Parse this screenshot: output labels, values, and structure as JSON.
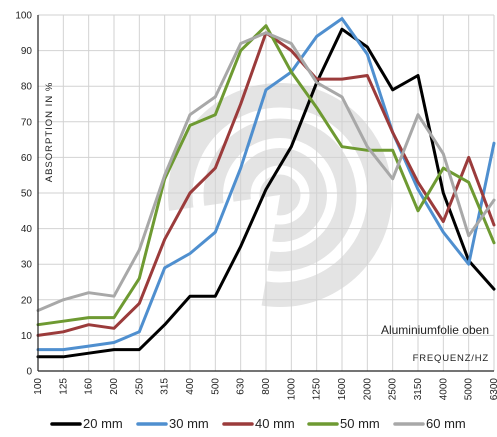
{
  "chart_data": {
    "type": "line",
    "title": "",
    "ylabel": "ABSORPTION IN %",
    "xlabel": "FREQUENZ/HZ",
    "annotation": "Aluminiumfolie oben",
    "ylim": [
      0,
      100
    ],
    "yticks": [
      "0",
      "10",
      "20",
      "30",
      "40",
      "50",
      "60",
      "70",
      "80",
      "90",
      "100"
    ],
    "categories": [
      "100",
      "125",
      "160",
      "200",
      "250",
      "315",
      "400",
      "500",
      "630",
      "800",
      "1000",
      "1250",
      "1600",
      "2000",
      "2500",
      "3150",
      "4000",
      "5000",
      "6300"
    ],
    "grid": true,
    "legend_position": "bottom",
    "series": [
      {
        "name": "20 mm",
        "color": "#000000",
        "values": [
          4,
          4,
          5,
          6,
          6,
          13,
          21,
          21,
          35,
          51,
          63,
          81,
          96,
          91,
          79,
          83,
          50,
          31,
          23
        ]
      },
      {
        "name": "30 mm",
        "color": "#4f8fcf",
        "values": [
          6,
          6,
          7,
          8,
          11,
          29,
          33,
          39,
          57,
          79,
          84,
          94,
          99,
          89,
          67,
          51,
          39,
          30,
          64
        ]
      },
      {
        "name": "40 mm",
        "color": "#9b3b3b",
        "values": [
          10,
          11,
          13,
          12,
          19,
          37,
          50,
          57,
          75,
          95,
          90,
          82,
          82,
          83,
          67,
          53,
          42,
          60,
          41
        ]
      },
      {
        "name": "50 mm",
        "color": "#6e9a32",
        "values": [
          13,
          14,
          15,
          15,
          26,
          54,
          69,
          72,
          90,
          97,
          84,
          74,
          63,
          62,
          62,
          45,
          57,
          53,
          36
        ]
      },
      {
        "name": "60 mm",
        "color": "#a8a8a8",
        "values": [
          17,
          20,
          22,
          21,
          34,
          55,
          72,
          77,
          92,
          95,
          92,
          81,
          77,
          63,
          54,
          72,
          61,
          38,
          48
        ]
      }
    ]
  }
}
